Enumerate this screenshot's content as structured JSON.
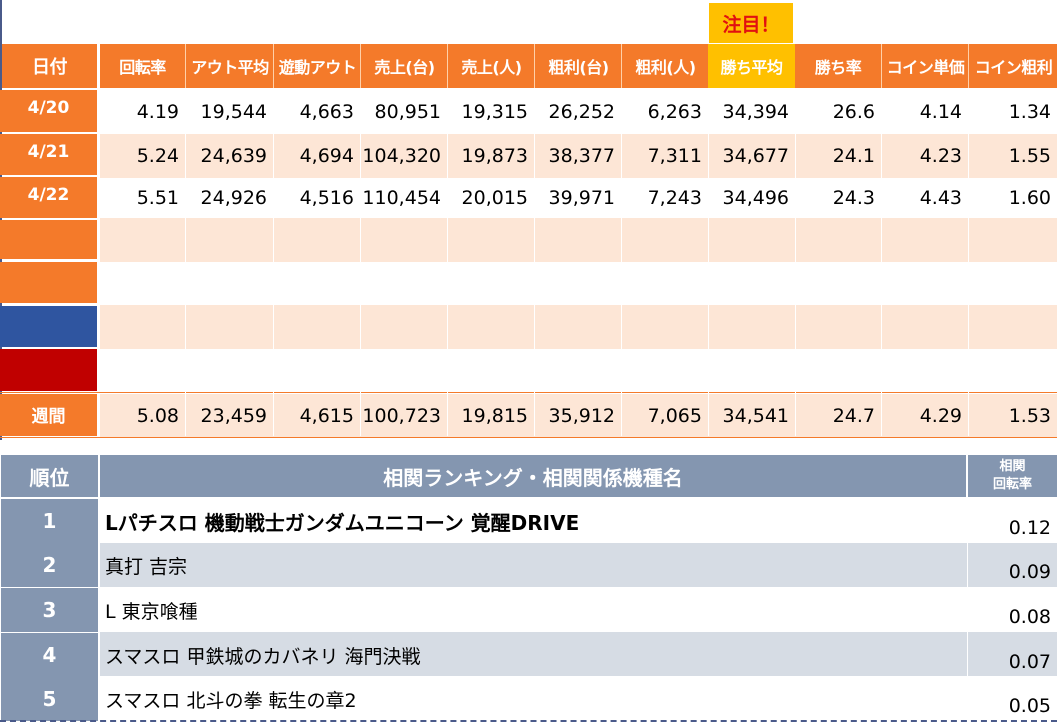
{
  "note": "注目！",
  "stats": {
    "headers": [
      "日付",
      "回転率",
      "アウト平均",
      "遊動アウト",
      "売上(台)",
      "売上(人)",
      "粗利(台)",
      "粗利(人)",
      "勝ち平均",
      "勝ち率",
      "コイン単価",
      "コイン粗利"
    ],
    "rows": [
      {
        "date": "4/20",
        "values": [
          "4.19",
          "19,544",
          "4,663",
          "80,951",
          "19,315",
          "26,252",
          "6,263",
          "34,394",
          "26.6",
          "4.14",
          "1.34"
        ]
      },
      {
        "date": "4/21",
        "values": [
          "5.24",
          "24,639",
          "4,694",
          "104,320",
          "19,873",
          "38,377",
          "7,311",
          "34,677",
          "24.1",
          "4.23",
          "1.55"
        ]
      },
      {
        "date": "4/22",
        "values": [
          "5.51",
          "24,926",
          "4,516",
          "110,454",
          "20,015",
          "39,971",
          "7,243",
          "34,496",
          "24.3",
          "4.43",
          "1.60"
        ]
      }
    ],
    "weekly": {
      "label": "週間",
      "values": [
        "5.08",
        "23,459",
        "4,615",
        "100,723",
        "19,815",
        "35,912",
        "7,065",
        "34,541",
        "24.7",
        "4.29",
        "1.53"
      ]
    }
  },
  "colors": {
    "orange": "#f47a2a",
    "blue": "#2f55a0",
    "red": "#c00000",
    "gold": "#ffc000",
    "rank_header": "#8496b0"
  },
  "ranking": {
    "header_rank": "順位",
    "header_name": "相関ランキング・相関関係機種名",
    "header_value_line1": "相関",
    "header_value_line2": "回転率",
    "items": [
      {
        "rank": "1",
        "name": "Lパチスロ 機動戦士ガンダムユニコーン 覚醒DRIVE",
        "value": "0.12"
      },
      {
        "rank": "2",
        "name": "真打 吉宗",
        "value": "0.09"
      },
      {
        "rank": "3",
        "name": "L 東京喰種",
        "value": "0.08"
      },
      {
        "rank": "4",
        "name": "スマスロ 甲鉄城のカバネリ 海門決戦",
        "value": "0.07"
      },
      {
        "rank": "5",
        "name": "スマスロ 北斗の拳 転生の章2",
        "value": "0.05"
      }
    ]
  }
}
